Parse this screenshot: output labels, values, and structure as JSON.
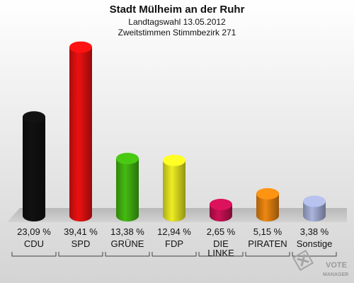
{
  "chart_data": {
    "type": "bar",
    "title": "Stadt Mülheim an der Ruhr",
    "subtitle_lines": [
      "Landtagswahl 13.05.2012",
      "Zweitstimmen Stimmbezirk 271"
    ],
    "categories": [
      "CDU",
      "SPD",
      "GRÜNE",
      "FDP",
      "DIE LINKE",
      "PIRATEN",
      "Sonstige"
    ],
    "category_lines": [
      [
        "CDU"
      ],
      [
        "SPD"
      ],
      [
        "GRÜNE"
      ],
      [
        "FDP"
      ],
      [
        "DIE",
        "LINKE"
      ],
      [
        "PIRATEN"
      ],
      [
        "Sonstige"
      ]
    ],
    "values": [
      23.09,
      39.41,
      13.38,
      12.94,
      2.65,
      5.15,
      3.38
    ],
    "value_labels": [
      "23,09 %",
      "39,41 %",
      "13,38 %",
      "12,94 %",
      "2,65 %",
      "5,15 %",
      "3,38 %"
    ],
    "colors": [
      "#111111",
      "#ee1111",
      "#44bb11",
      "#eeee22",
      "#cc1155",
      "#ee8811",
      "#aab4dd"
    ],
    "ylim": [
      0,
      40
    ],
    "grid": false
  },
  "logo": {
    "line1": "VOTE",
    "line2": "MANAGER"
  }
}
